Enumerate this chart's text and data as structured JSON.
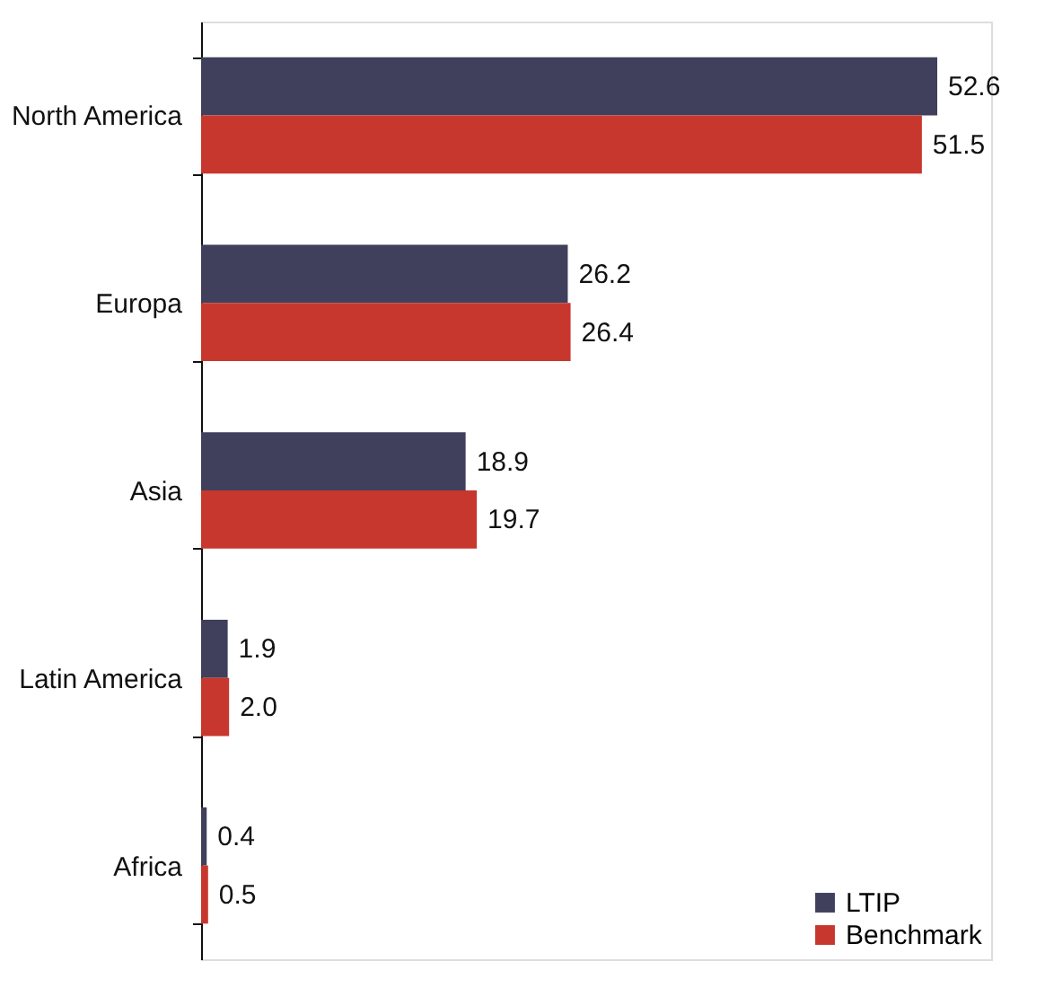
{
  "chart_data": {
    "type": "bar",
    "orientation": "horizontal",
    "categories": [
      "North America",
      "Europa",
      "Asia",
      "Latin America",
      "Africa"
    ],
    "series": [
      {
        "name": "LTIP",
        "color": "#40405c",
        "values": [
          52.6,
          26.2,
          18.9,
          1.9,
          0.4
        ],
        "value_labels": [
          "52.6",
          "26.2",
          "18.9",
          "1.9",
          "0.4"
        ]
      },
      {
        "name": "Benchmark",
        "color": "#c8372d",
        "values": [
          51.5,
          26.4,
          19.7,
          2.0,
          0.5
        ],
        "value_labels": [
          "51.5",
          "26.4",
          "19.7",
          "2.0",
          "0.5"
        ]
      }
    ],
    "legend": "bottom right",
    "grid": false
  }
}
